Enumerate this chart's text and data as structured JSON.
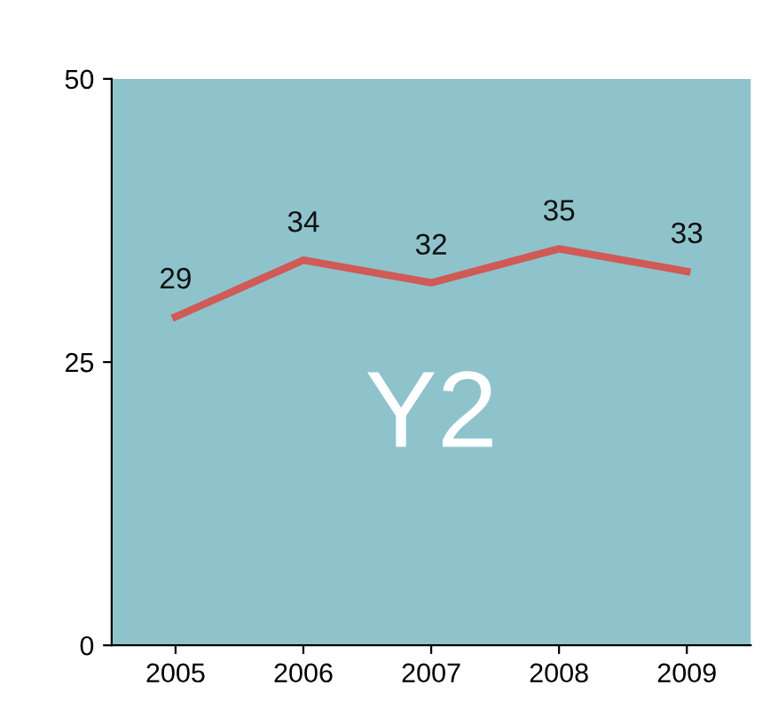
{
  "chart_data": {
    "type": "line",
    "categories": [
      "2005",
      "2006",
      "2007",
      "2008",
      "2009"
    ],
    "series": [
      {
        "color": "#d05a55",
        "values": [
          29,
          34,
          32,
          35,
          33
        ]
      }
    ],
    "ylim": [
      0,
      50
    ],
    "yticks": [
      0,
      25,
      50
    ],
    "data_labels": true,
    "grid": false,
    "marker": "none",
    "line_style": "solid",
    "annotations": [
      "Y2"
    ]
  }
}
